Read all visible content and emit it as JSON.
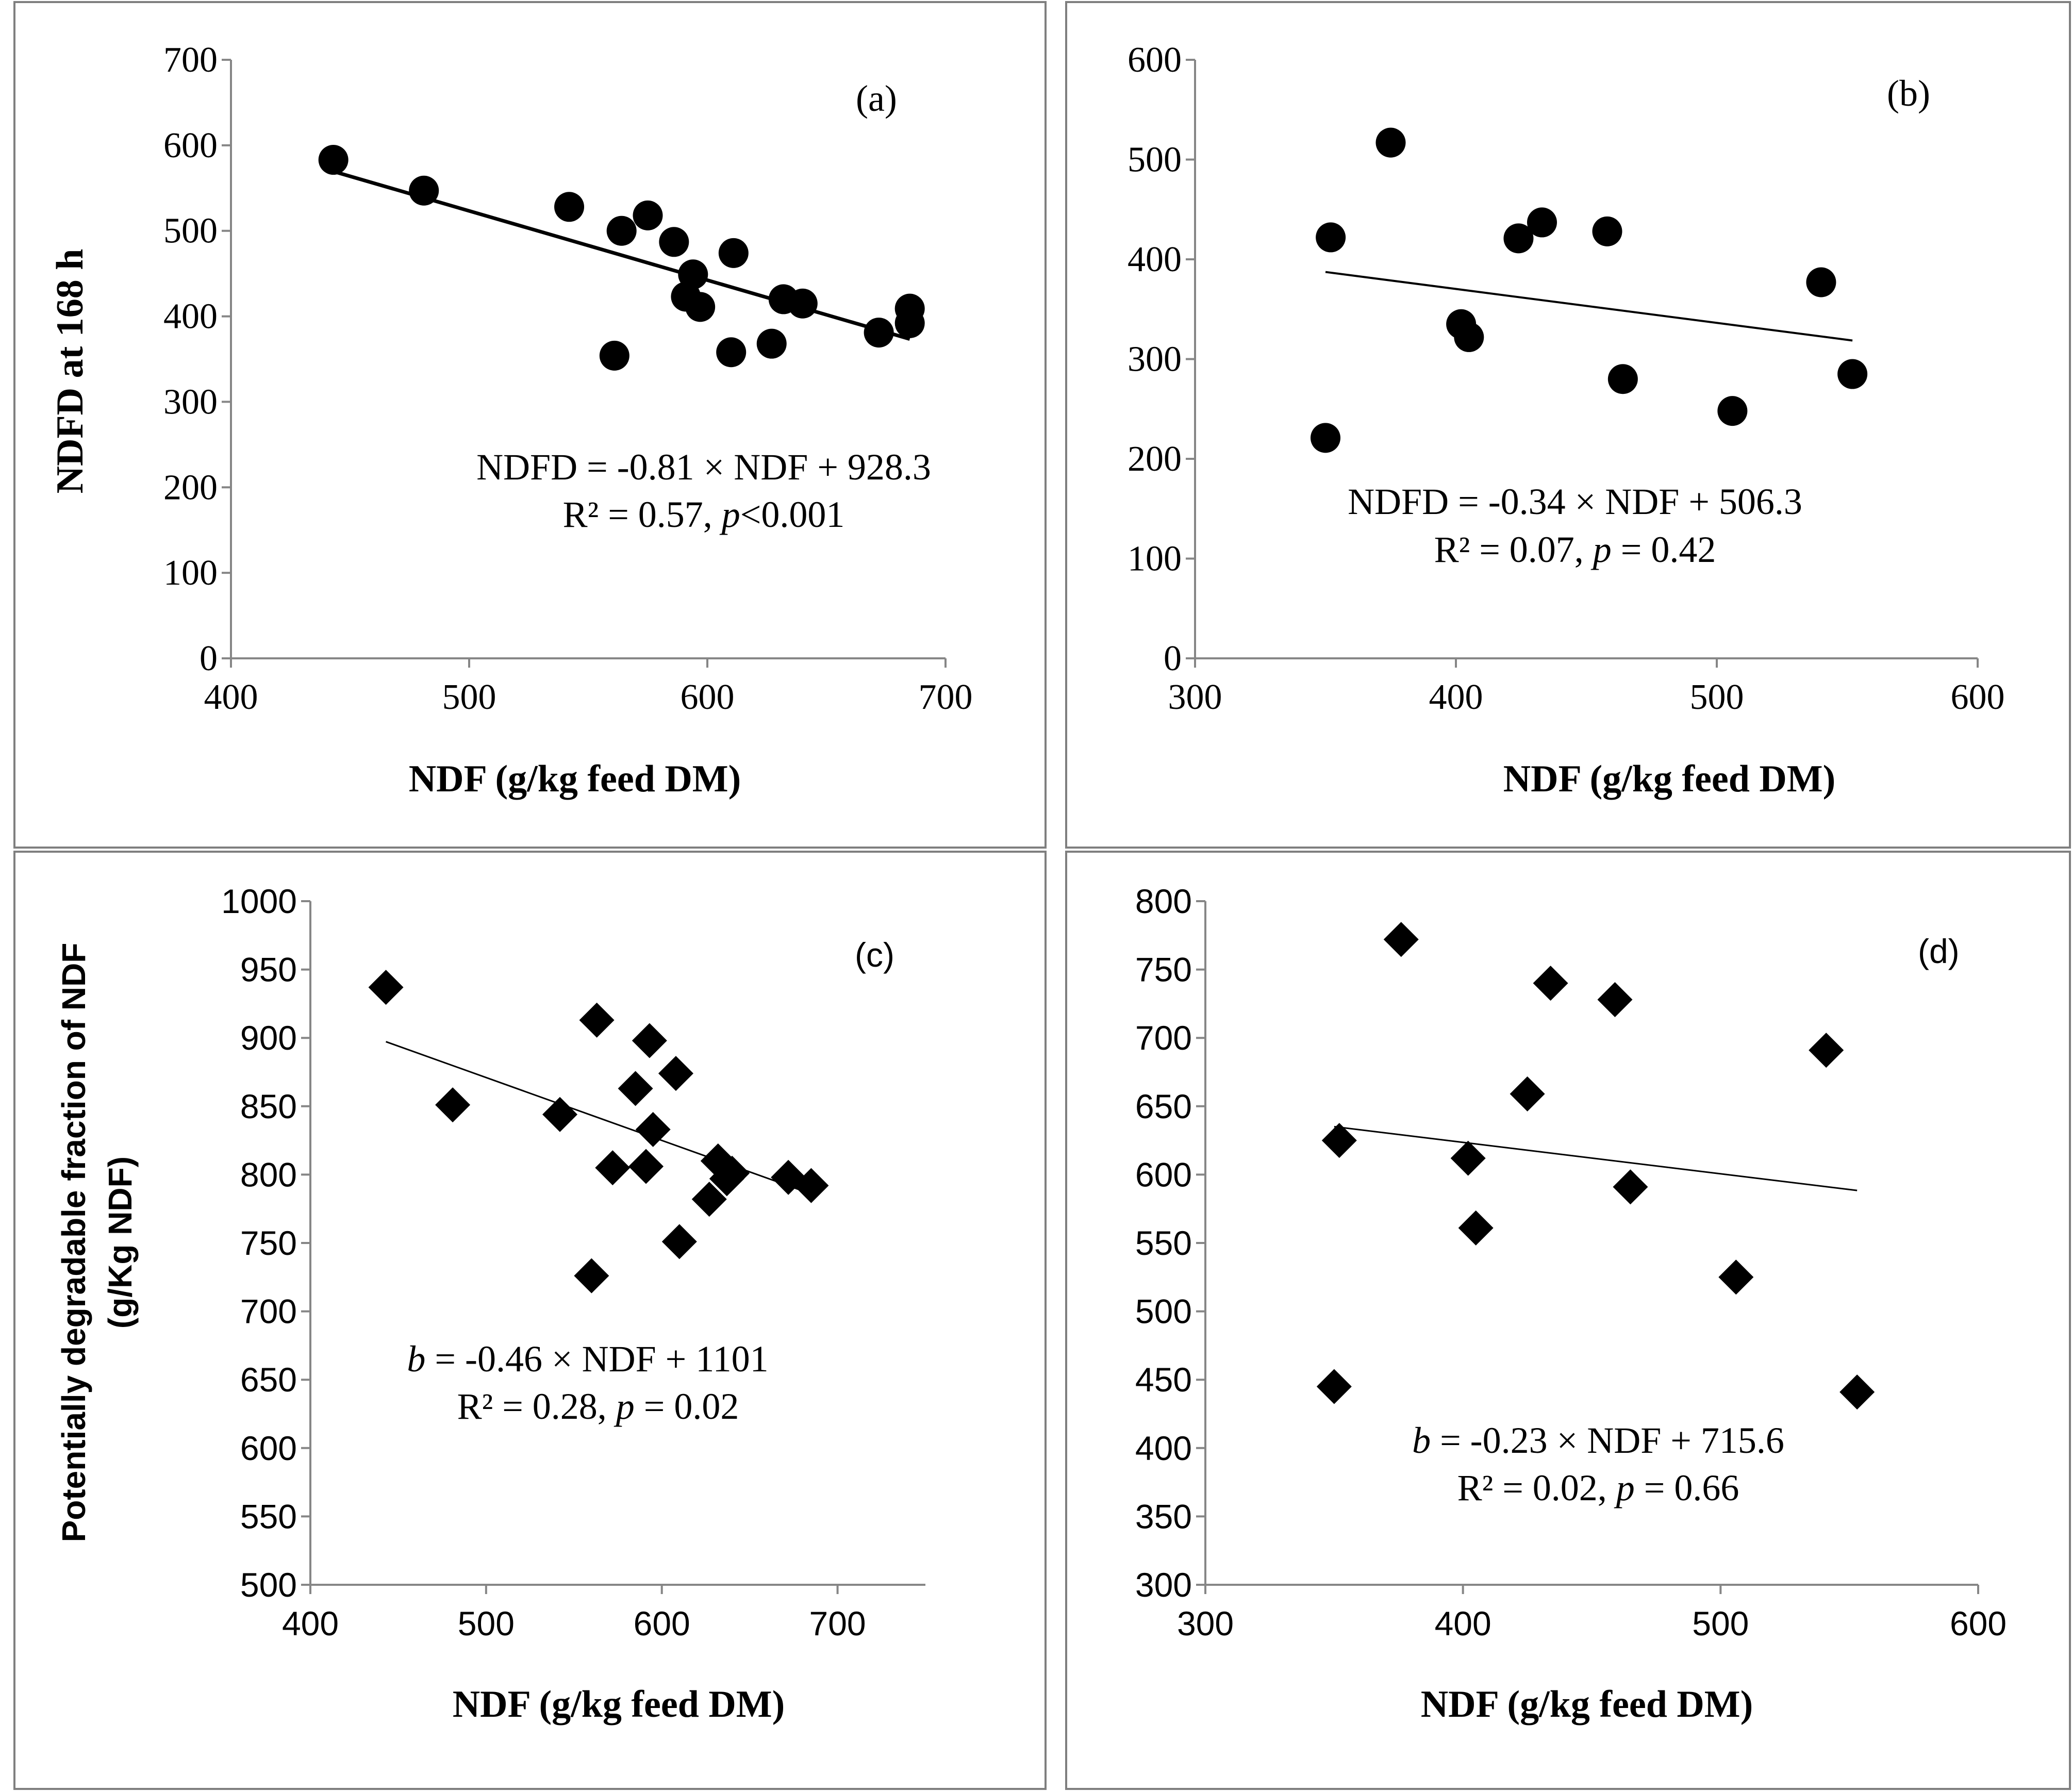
{
  "chart_data": [
    {
      "panel": "a",
      "type": "scatter",
      "panel_label": "(a)",
      "marker": "circle",
      "xlabel": "NDF (g/kg feed DM)",
      "ylabel": "NDFD at 168 h",
      "xlim": [
        400,
        700
      ],
      "ylim": [
        0,
        700
      ],
      "xticks": [
        400,
        500,
        600,
        700
      ],
      "yticks": [
        0,
        100,
        200,
        300,
        400,
        500,
        600,
        700
      ],
      "points": [
        {
          "x": 443,
          "y": 583
        },
        {
          "x": 481,
          "y": 547
        },
        {
          "x": 542,
          "y": 528
        },
        {
          "x": 561,
          "y": 354
        },
        {
          "x": 564,
          "y": 500
        },
        {
          "x": 575,
          "y": 518
        },
        {
          "x": 586,
          "y": 487
        },
        {
          "x": 591,
          "y": 423
        },
        {
          "x": 594,
          "y": 449
        },
        {
          "x": 597,
          "y": 411
        },
        {
          "x": 610,
          "y": 358
        },
        {
          "x": 611,
          "y": 474
        },
        {
          "x": 627,
          "y": 368
        },
        {
          "x": 632,
          "y": 420
        },
        {
          "x": 640,
          "y": 415
        },
        {
          "x": 672,
          "y": 381
        },
        {
          "x": 685,
          "y": 409
        },
        {
          "x": 685,
          "y": 392
        }
      ],
      "trendline": {
        "slope": -0.81,
        "intercept": 928.3,
        "x_range": [
          443,
          685
        ]
      },
      "equation_line1": "NDFD = -0.81 × NDF + 928.3",
      "stats_prefix": "R² = 0.57, ",
      "stats_p": "p",
      "stats_suffix": "<0.001"
    },
    {
      "panel": "b",
      "type": "scatter",
      "panel_label": "(b)",
      "marker": "circle",
      "xlabel": "NDF (g/kg feed DM)",
      "ylabel": "",
      "xlim": [
        300,
        600
      ],
      "ylim": [
        0,
        600
      ],
      "xticks": [
        300,
        400,
        500,
        600
      ],
      "yticks": [
        0,
        100,
        200,
        300,
        400,
        500,
        600
      ],
      "points": [
        {
          "x": 350,
          "y": 221
        },
        {
          "x": 352,
          "y": 422
        },
        {
          "x": 375,
          "y": 517
        },
        {
          "x": 402,
          "y": 335
        },
        {
          "x": 405,
          "y": 322
        },
        {
          "x": 424,
          "y": 421
        },
        {
          "x": 433,
          "y": 437
        },
        {
          "x": 458,
          "y": 428
        },
        {
          "x": 464,
          "y": 280
        },
        {
          "x": 506,
          "y": 248
        },
        {
          "x": 540,
          "y": 377
        },
        {
          "x": 552,
          "y": 285
        }
      ],
      "trendline": {
        "slope": -0.34,
        "intercept": 506.3,
        "x_range": [
          350,
          552
        ]
      },
      "equation_line1": "NDFD = -0.34 × NDF + 506.3",
      "stats_prefix": "R² = 0.07, ",
      "stats_p": "p",
      "stats_suffix": " = 0.42"
    },
    {
      "panel": "c",
      "type": "scatter",
      "panel_label": "(c)",
      "marker": "diamond",
      "xlabel": "NDF (g/kg feed DM)",
      "ylabel": "Potentially degradable fraction of NDF",
      "ylabel2": "(g/Kg NDF)",
      "xlim": [
        400,
        750
      ],
      "ylim": [
        500,
        1000
      ],
      "xticks": [
        400,
        500,
        600,
        700
      ],
      "yticks": [
        500,
        550,
        600,
        650,
        700,
        750,
        800,
        850,
        900,
        950,
        1000
      ],
      "points": [
        {
          "x": 443,
          "y": 937
        },
        {
          "x": 481,
          "y": 851
        },
        {
          "x": 542,
          "y": 844
        },
        {
          "x": 560,
          "y": 726
        },
        {
          "x": 563,
          "y": 913
        },
        {
          "x": 572,
          "y": 805
        },
        {
          "x": 585,
          "y": 863
        },
        {
          "x": 591,
          "y": 806
        },
        {
          "x": 593,
          "y": 898
        },
        {
          "x": 595,
          "y": 833
        },
        {
          "x": 608,
          "y": 874
        },
        {
          "x": 610,
          "y": 751
        },
        {
          "x": 627,
          "y": 782
        },
        {
          "x": 632,
          "y": 810
        },
        {
          "x": 637,
          "y": 797
        },
        {
          "x": 640,
          "y": 801
        },
        {
          "x": 672,
          "y": 798
        },
        {
          "x": 685,
          "y": 792
        }
      ],
      "trendline": {
        "slope": -0.46,
        "intercept": 1101,
        "x_range": [
          443,
          685
        ]
      },
      "equation_b": "b",
      "equation_line1": " = -0.46 × NDF + 1101",
      "stats_prefix": "R² = 0.28, ",
      "stats_p": "p",
      "stats_suffix": " = 0.02"
    },
    {
      "panel": "d",
      "type": "scatter",
      "panel_label": "(d)",
      "marker": "diamond",
      "xlabel": "NDF (g/kg feed DM)",
      "ylabel": "",
      "xlim": [
        300,
        600
      ],
      "ylim": [
        300,
        800
      ],
      "xticks": [
        300,
        400,
        500,
        600
      ],
      "yticks": [
        300,
        350,
        400,
        450,
        500,
        550,
        600,
        650,
        700,
        750,
        800
      ],
      "points": [
        {
          "x": 350,
          "y": 445
        },
        {
          "x": 352,
          "y": 625
        },
        {
          "x": 376,
          "y": 772
        },
        {
          "x": 402,
          "y": 612
        },
        {
          "x": 405,
          "y": 561
        },
        {
          "x": 425,
          "y": 659
        },
        {
          "x": 434,
          "y": 740
        },
        {
          "x": 459,
          "y": 728
        },
        {
          "x": 465,
          "y": 591
        },
        {
          "x": 506,
          "y": 525
        },
        {
          "x": 541,
          "y": 691
        },
        {
          "x": 553,
          "y": 441
        }
      ],
      "trendline": {
        "slope": -0.23,
        "intercept": 715.6,
        "x_range": [
          350,
          553
        ]
      },
      "equation_b": "b",
      "equation_line1": " = -0.23 × NDF  + 715.6",
      "stats_prefix": "R² = 0.02, ",
      "stats_p": "p",
      "stats_suffix": " = 0.66"
    }
  ]
}
